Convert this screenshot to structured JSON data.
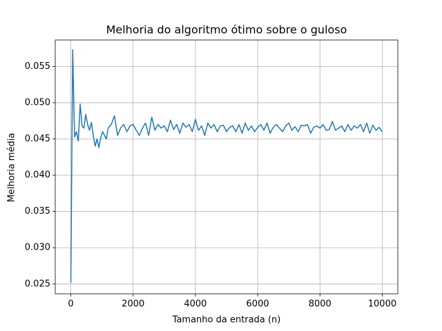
{
  "chart_data": {
    "type": "line",
    "title": "Melhoria do algoritmo ótimo sobre o guloso",
    "xlabel": "Tamanho da entrada (n)",
    "ylabel": "Melhoria média",
    "x": [
      0,
      60,
      120,
      180,
      240,
      300,
      360,
      420,
      480,
      540,
      600,
      660,
      720,
      780,
      840,
      900,
      960,
      1020,
      1080,
      1140,
      1200,
      1300,
      1400,
      1500,
      1600,
      1700,
      1800,
      1900,
      2000,
      2100,
      2200,
      2300,
      2400,
      2500,
      2600,
      2700,
      2800,
      2900,
      3000,
      3100,
      3200,
      3300,
      3400,
      3500,
      3600,
      3700,
      3800,
      3900,
      4000,
      4100,
      4200,
      4300,
      4400,
      4500,
      4600,
      4700,
      4800,
      4900,
      5000,
      5100,
      5200,
      5300,
      5400,
      5500,
      5600,
      5700,
      5800,
      5900,
      6000,
      6100,
      6200,
      6300,
      6400,
      6500,
      6600,
      6700,
      6800,
      6900,
      7000,
      7100,
      7200,
      7300,
      7400,
      7500,
      7600,
      7700,
      7800,
      7900,
      8000,
      8100,
      8200,
      8300,
      8400,
      8500,
      8600,
      8700,
      8800,
      8900,
      9000,
      9100,
      9200,
      9300,
      9400,
      9500,
      9600,
      9700,
      9800,
      9900,
      10000
    ],
    "series": [
      {
        "name": "Melhoria média",
        "color": "#1f77b4",
        "values": [
          0.0252,
          0.0573,
          0.0453,
          0.046,
          0.0447,
          0.0498,
          0.0468,
          0.0465,
          0.0484,
          0.047,
          0.0462,
          0.0473,
          0.0455,
          0.044,
          0.045,
          0.0438,
          0.0452,
          0.046,
          0.0455,
          0.045,
          0.0465,
          0.047,
          0.0482,
          0.0455,
          0.0465,
          0.047,
          0.046,
          0.0468,
          0.047,
          0.0462,
          0.0455,
          0.0465,
          0.0472,
          0.0455,
          0.048,
          0.0462,
          0.047,
          0.0465,
          0.0468,
          0.046,
          0.0476,
          0.0463,
          0.047,
          0.0458,
          0.0472,
          0.0466,
          0.047,
          0.046,
          0.0477,
          0.0462,
          0.0468,
          0.0455,
          0.0472,
          0.0465,
          0.047,
          0.046,
          0.0468,
          0.0469,
          0.046,
          0.0466,
          0.0468,
          0.046,
          0.047,
          0.0458,
          0.0472,
          0.0462,
          0.0468,
          0.046,
          0.0466,
          0.047,
          0.0462,
          0.0472,
          0.0458,
          0.0466,
          0.047,
          0.0465,
          0.046,
          0.0468,
          0.0472,
          0.0462,
          0.0467,
          0.046,
          0.0469,
          0.0468,
          0.047,
          0.0458,
          0.0466,
          0.0468,
          0.0465,
          0.047,
          0.0462,
          0.0463,
          0.0474,
          0.0462,
          0.0465,
          0.0468,
          0.046,
          0.047,
          0.0462,
          0.0468,
          0.0465,
          0.047,
          0.046,
          0.0472,
          0.0458,
          0.0469,
          0.0462,
          0.0466,
          0.046
        ]
      }
    ],
    "xlim": [
      -500,
      10500
    ],
    "ylim": [
      0.02365,
      0.05865
    ],
    "xticks": [
      0,
      2000,
      4000,
      6000,
      8000,
      10000
    ],
    "yticks": [
      0.025,
      {
        "value": 0.03,
        "label": "0.030"
      },
      0.035,
      {
        "value": 0.04,
        "label": "0.040"
      },
      0.045,
      {
        "value": 0.05,
        "label": "0.050"
      },
      0.055
    ],
    "grid": true
  }
}
